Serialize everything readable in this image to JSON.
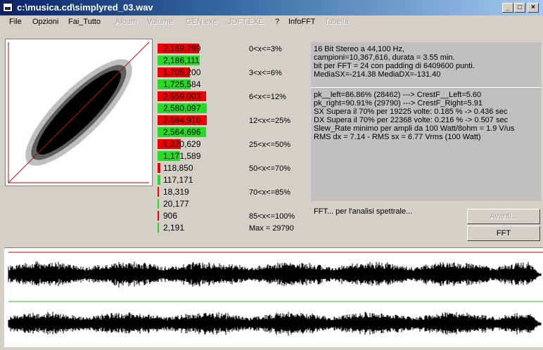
{
  "window": {
    "title": "c:\\musica.cd\\simplyred_03.wav",
    "minimize": "_",
    "maximize": "□",
    "close": "×"
  },
  "menu": [
    {
      "label": "File",
      "enabled": true
    },
    {
      "label": "Opzioni",
      "enabled": true
    },
    {
      "label": "Fai_Tutto",
      "enabled": true
    },
    {
      "label": "Album",
      "enabled": false
    },
    {
      "label": "Volume",
      "enabled": false
    },
    {
      "label": "GEN.exe",
      "enabled": false
    },
    {
      "label": "JDFT.EXE",
      "enabled": false
    },
    {
      "label": "?",
      "enabled": true
    },
    {
      "label": "InfoFFT",
      "enabled": true
    },
    {
      "label": "Tabella",
      "enabled": false
    }
  ],
  "histogram": {
    "colors": {
      "left": "#ee0000",
      "right": "#22dd22"
    },
    "rows": [
      {
        "channel": "left",
        "value": "2,159,799",
        "fraction": 0.84
      },
      {
        "channel": "right",
        "value": "2,186,111",
        "fraction": 0.85
      },
      {
        "channel": "left",
        "value": "1,705,200",
        "fraction": 0.66
      },
      {
        "channel": "right",
        "value": "1,725,584",
        "fraction": 0.67
      },
      {
        "channel": "left",
        "value": "2,559,003",
        "fraction": 0.99
      },
      {
        "channel": "right",
        "value": "2,580,097",
        "fraction": 1.0
      },
      {
        "channel": "left",
        "value": "2,584,910",
        "fraction": 1.0
      },
      {
        "channel": "right",
        "value": "2,564,696",
        "fraction": 0.99
      },
      {
        "channel": "left",
        "value": "1,220,629",
        "fraction": 0.47
      },
      {
        "channel": "right",
        "value": "1,171,589",
        "fraction": 0.45
      },
      {
        "channel": "left",
        "value": "118,850",
        "fraction": 0.05
      },
      {
        "channel": "right",
        "value": "117,171",
        "fraction": 0.05
      },
      {
        "channel": "left",
        "value": "18,319",
        "fraction": 0.02
      },
      {
        "channel": "right",
        "value": "20,177",
        "fraction": 0.02
      },
      {
        "channel": "left",
        "value": "906",
        "fraction": 0.01
      },
      {
        "channel": "right",
        "value": "2,191",
        "fraction": 0.01
      }
    ],
    "ranges": [
      "0<x<=3%",
      "3<x<=6%",
      "6<x<=12%",
      "12<x<=25%",
      "25<x<=50%",
      "50<x<=70%",
      "70<x<=85%",
      "85<x<=100%"
    ],
    "max_label": "Max = 29790"
  },
  "info": {
    "lines": [
      "16 Bit Stereo a 44,100 Hz,",
      "campioni=10,367,616, durata = 3.55 min.",
      "bit per FFT = 24 con padding di 6409600 punti.",
      "MediaSX=-214.38  MediaDX=-131.40",
      "pk__left=86.86% (28462) ---> CrestF__Left=5.60",
      "pk_right=90.91% (29790) ---> CrestF_Right=5.91",
      "SX Supera il 70% per 19225 volte: 0.185 % -> 0.436 sec",
      "DX Supera il 70% per 22368 volte: 0.216 %  -> 0.507 sec",
      "Slew_Rate minimo per ampli da 100 Watt/8ohm = 1.9 V/us",
      "RMS dx = 7.14 - RMS sx = 6.77 Vrms (100 Watt)"
    ]
  },
  "fft": {
    "status": "FFT... per l'analisi spettrale...",
    "next_label": "Avanti...",
    "fft_label": "FFT"
  }
}
